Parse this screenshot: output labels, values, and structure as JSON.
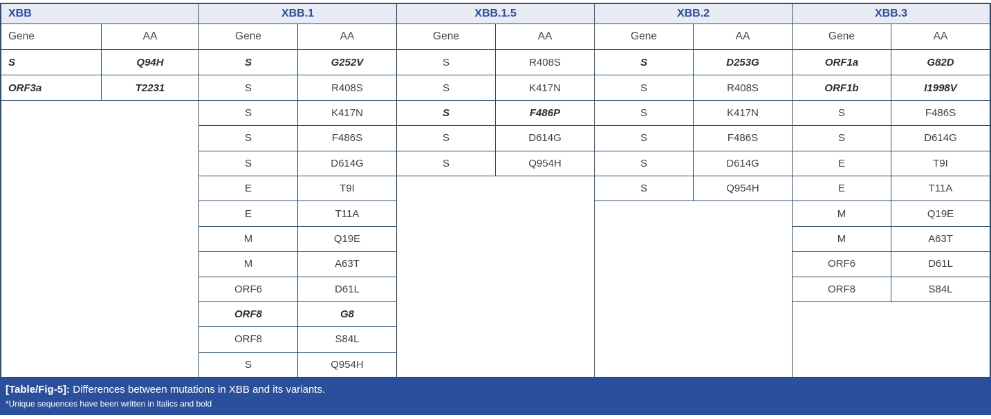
{
  "colors": {
    "border": "#2d4d6e",
    "group_header_bg": "#e9ebf4",
    "group_header_text": "#2b4f9e",
    "cell_text": "#414141",
    "caption_bg": "#2b4f9b",
    "caption_text": "#ffffff"
  },
  "table": {
    "groups": [
      {
        "name": "XBB",
        "gene_header": "Gene",
        "aa_header": "AA",
        "align": "left",
        "rows": [
          {
            "gene": "S",
            "aa": "Q94H",
            "unique": true
          },
          {
            "gene": "ORF3a",
            "aa": "T2231",
            "unique": true
          }
        ]
      },
      {
        "name": "XBB.1",
        "gene_header": "Gene",
        "aa_header": "AA",
        "align": "center",
        "rows": [
          {
            "gene": "S",
            "aa": "G252V",
            "unique": true
          },
          {
            "gene": "S",
            "aa": "R408S",
            "unique": false
          },
          {
            "gene": "S",
            "aa": "K417N",
            "unique": false
          },
          {
            "gene": "S",
            "aa": "F486S",
            "unique": false
          },
          {
            "gene": "S",
            "aa": "D614G",
            "unique": false
          },
          {
            "gene": "E",
            "aa": "T9I",
            "unique": false
          },
          {
            "gene": "E",
            "aa": "T11A",
            "unique": false
          },
          {
            "gene": "M",
            "aa": "Q19E",
            "unique": false
          },
          {
            "gene": "M",
            "aa": "A63T",
            "unique": false
          },
          {
            "gene": "ORF6",
            "aa": "D61L",
            "unique": false
          },
          {
            "gene": "ORF8",
            "aa": "G8",
            "unique": true
          },
          {
            "gene": "ORF8",
            "aa": "S84L",
            "unique": false
          },
          {
            "gene": "S",
            "aa": "Q954H",
            "unique": false
          }
        ]
      },
      {
        "name": "XBB.1.5",
        "gene_header": "Gene",
        "aa_header": "AA",
        "align": "center",
        "rows": [
          {
            "gene": "S",
            "aa": "R408S",
            "unique": false
          },
          {
            "gene": "S",
            "aa": "K417N",
            "unique": false
          },
          {
            "gene": "S",
            "aa": "F486P",
            "unique": true
          },
          {
            "gene": "S",
            "aa": "D614G",
            "unique": false
          },
          {
            "gene": "S",
            "aa": "Q954H",
            "unique": false
          }
        ]
      },
      {
        "name": "XBB.2",
        "gene_header": "Gene",
        "aa_header": "AA",
        "align": "center",
        "rows": [
          {
            "gene": "S",
            "aa": "D253G",
            "unique": true
          },
          {
            "gene": "S",
            "aa": "R408S",
            "unique": false
          },
          {
            "gene": "S",
            "aa": "K417N",
            "unique": false
          },
          {
            "gene": "S",
            "aa": "F486S",
            "unique": false
          },
          {
            "gene": "S",
            "aa": "D614G",
            "unique": false
          },
          {
            "gene": "S",
            "aa": "Q954H",
            "unique": false
          }
        ]
      },
      {
        "name": "XBB.3",
        "gene_header": "Gene",
        "aa_header": "AA",
        "align": "center",
        "rows": [
          {
            "gene": "ORF1a",
            "aa": "G82D",
            "unique": true
          },
          {
            "gene": "ORF1b",
            "aa": "I1998V",
            "unique": true
          },
          {
            "gene": "S",
            "aa": "F486S",
            "unique": false
          },
          {
            "gene": "S",
            "aa": "D614G",
            "unique": false
          },
          {
            "gene": "E",
            "aa": "T9I",
            "unique": false
          },
          {
            "gene": "E",
            "aa": "T11A",
            "unique": false
          },
          {
            "gene": "M",
            "aa": "Q19E",
            "unique": false
          },
          {
            "gene": "M",
            "aa": "A63T",
            "unique": false
          },
          {
            "gene": "ORF6",
            "aa": "D61L",
            "unique": false
          },
          {
            "gene": "ORF8",
            "aa": "S84L",
            "unique": false
          }
        ]
      }
    ]
  },
  "caption": {
    "label": "[Table/Fig-5]:",
    "text": "Differences between mutations in XBB and its variants.",
    "footnote": "*Unique sequences have been written in Italics and bold"
  }
}
